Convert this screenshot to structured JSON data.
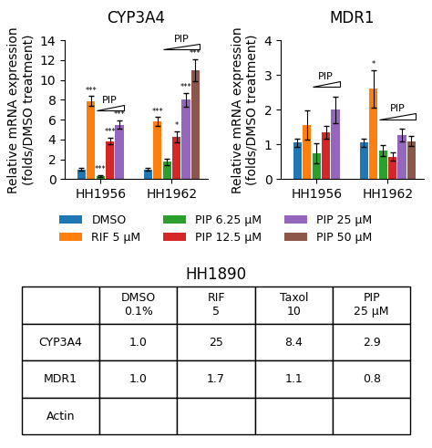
{
  "chart_data": [
    {
      "type": "bar",
      "title": "CYP3A4",
      "ylabel": "Relative mRNA expression\n(folds/DMSO treatment)",
      "categories": [
        "HH1956",
        "HH1962"
      ],
      "series": [
        {
          "name": "DMSO",
          "values": [
            1.0,
            1.0
          ],
          "errors": [
            0.15,
            0.15
          ]
        },
        {
          "name": "RIF 5 μM",
          "values": [
            7.9,
            5.8
          ],
          "errors": [
            0.5,
            0.45
          ],
          "annotations": [
            "***",
            "***"
          ]
        },
        {
          "name": "PIP 6.25 μM",
          "values": [
            0.35,
            1.75
          ],
          "errors": [
            0.1,
            0.3
          ],
          "annotations": [
            "***",
            null
          ]
        },
        {
          "name": "PIP 12.5 μM",
          "values": [
            3.85,
            4.3
          ],
          "errors": [
            0.35,
            0.55
          ],
          "annotations": [
            "***",
            "*"
          ]
        },
        {
          "name": "PIP 25 μM",
          "values": [
            5.5,
            8.0
          ],
          "errors": [
            0.45,
            0.7
          ],
          "annotations": [
            "***",
            "***"
          ]
        },
        {
          "name": "PIP 50 μM",
          "values": [
            null,
            11.0
          ],
          "errors": [
            null,
            1.1
          ],
          "annotations": [
            null,
            "***"
          ]
        }
      ],
      "ylim": [
        0,
        14
      ],
      "yticks": [
        0,
        2,
        4,
        6,
        8,
        10,
        12,
        14
      ],
      "legend": "upper center",
      "annotations": [
        {
          "text": "PIP",
          "category": "HH1956",
          "series": [
            "PIP 6.25 μM",
            "PIP 12.5 μM",
            "PIP 25 μM"
          ]
        },
        {
          "text": "PIP",
          "category": "HH1962",
          "series": [
            "PIP 6.25 μM",
            "PIP 12.5 μM",
            "PIP 25 μM",
            "PIP 50 μM"
          ]
        }
      ]
    },
    {
      "type": "bar",
      "title": "MDR1",
      "ylabel": "Relative mRNA expression\n(folds/DMSO treatment)",
      "categories": [
        "HH1956",
        "HH1962"
      ],
      "series": [
        {
          "name": "DMSO",
          "values": [
            1.05,
            1.05
          ],
          "errors": [
            0.12,
            0.12
          ]
        },
        {
          "name": "RIF 5 μM",
          "values": [
            1.55,
            2.6
          ],
          "errors": [
            0.42,
            0.55
          ],
          "annotations": [
            null,
            "*"
          ]
        },
        {
          "name": "PIP 6.25 μM",
          "values": [
            0.75,
            0.82
          ],
          "errors": [
            0.28,
            0.15
          ]
        },
        {
          "name": "PIP 12.5 μM",
          "values": [
            1.35,
            0.65
          ],
          "errors": [
            0.18,
            0.12
          ]
        },
        {
          "name": "PIP 25 μM",
          "values": [
            2.0,
            1.27
          ],
          "errors": [
            0.38,
            0.18
          ]
        },
        {
          "name": "PIP 50 μM",
          "values": [
            null,
            1.1
          ],
          "errors": [
            null,
            0.15
          ]
        }
      ],
      "ylim": [
        0,
        4
      ],
      "yticks": [
        0,
        1,
        2,
        3,
        4
      ],
      "annotations": [
        {
          "text": "PIP",
          "category": "HH1956",
          "series": [
            "PIP 6.25 μM",
            "PIP 12.5 μM",
            "PIP 25 μM"
          ]
        },
        {
          "text": "PIP",
          "category": "HH1962",
          "series": [
            "PIP 6.25 μM",
            "PIP 12.5 μM",
            "PIP 25 μM",
            "PIP 50 μM"
          ]
        }
      ]
    },
    {
      "type": "table",
      "title": "HH1890",
      "columns": [
        [
          "DMSO",
          "0.1%"
        ],
        [
          "RIF",
          "5"
        ],
        [
          "Taxol",
          "10"
        ],
        [
          "PIP",
          "25 μM"
        ]
      ],
      "rows": [
        "CYP3A4",
        "MDR1",
        "Actin"
      ],
      "values": [
        [
          1.0,
          25,
          8.4,
          2.9
        ],
        [
          1.0,
          1.7,
          1.1,
          0.8
        ],
        null
      ]
    }
  ]
}
